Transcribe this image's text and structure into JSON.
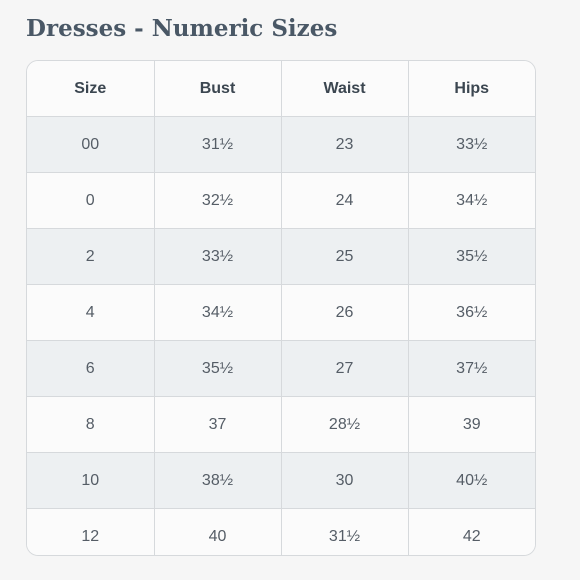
{
  "title": "Dresses - Numeric Sizes",
  "table": {
    "headers": [
      "Size",
      "Bust",
      "Waist",
      "Hips"
    ],
    "rows": [
      [
        "00",
        "31½",
        "23",
        "33½"
      ],
      [
        "0",
        "32½",
        "24",
        "34½"
      ],
      [
        "2",
        "33½",
        "25",
        "35½"
      ],
      [
        "4",
        "34½",
        "26",
        "36½"
      ],
      [
        "6",
        "35½",
        "27",
        "37½"
      ],
      [
        "8",
        "37",
        "28½",
        "39"
      ],
      [
        "10",
        "38½",
        "30",
        "40½"
      ],
      [
        "12",
        "40",
        "31½",
        "42"
      ]
    ]
  },
  "colors": {
    "title": "#4a5866",
    "stripe": "#edf0f2",
    "border": "#d6d9dc"
  }
}
